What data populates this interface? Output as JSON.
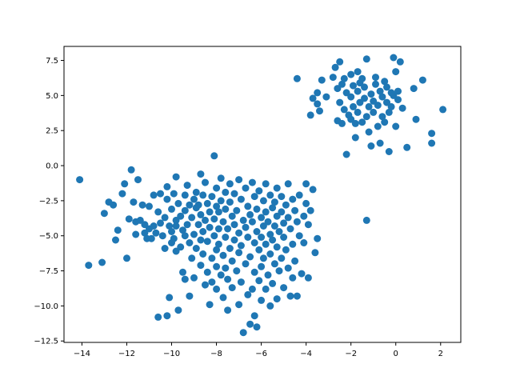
{
  "chart_data": {
    "type": "scatter",
    "title": "",
    "xlabel": "",
    "ylabel": "",
    "xlim": [
      -14.8,
      2.9
    ],
    "ylim": [
      -12.6,
      8.5
    ],
    "xticks": [
      -14,
      -12,
      -10,
      -8,
      -6,
      -4,
      -2,
      0,
      2
    ],
    "yticks": [
      -12.5,
      -10.0,
      -7.5,
      -5.0,
      -2.5,
      0.0,
      2.5,
      5.0,
      7.5
    ],
    "xtick_labels": [
      "−14",
      "−12",
      "−10",
      "−8",
      "−6",
      "−4",
      "−2",
      "0",
      "2"
    ],
    "ytick_labels": [
      "−12.5",
      "−10.0",
      "−7.5",
      "−5.0",
      "−2.5",
      "0.0",
      "2.5",
      "5.0",
      "7.5"
    ],
    "grid": false,
    "legend": "none",
    "marker_color": "#1f77b4",
    "series": [
      {
        "points": [
          [
            -14.1,
            -1.0
          ],
          [
            -13.7,
            -7.1
          ],
          [
            -13.1,
            -6.9
          ],
          [
            -13.0,
            -3.4
          ],
          [
            -12.8,
            -2.6
          ],
          [
            -12.6,
            -2.8
          ],
          [
            -12.5,
            -5.3
          ],
          [
            -12.4,
            -4.6
          ],
          [
            -12.2,
            -2.0
          ],
          [
            -12.1,
            -1.3
          ],
          [
            -12.0,
            -6.6
          ],
          [
            -11.9,
            -3.8
          ],
          [
            -11.8,
            -0.3
          ],
          [
            -11.7,
            -2.6
          ],
          [
            -11.6,
            -4.0
          ],
          [
            -11.6,
            -4.9
          ],
          [
            -11.5,
            -1.0
          ],
          [
            -11.4,
            -3.9
          ],
          [
            -11.3,
            -2.8
          ],
          [
            -11.2,
            -4.2
          ],
          [
            -11.2,
            -4.8
          ],
          [
            -11.1,
            -5.2
          ],
          [
            -11.0,
            -2.9
          ],
          [
            -11.0,
            -4.5
          ],
          [
            -10.9,
            -5.2
          ],
          [
            -10.8,
            -2.1
          ],
          [
            -10.8,
            -4.3
          ],
          [
            -10.7,
            -4.8
          ],
          [
            -10.6,
            -3.3
          ],
          [
            -10.6,
            -10.8
          ],
          [
            -10.5,
            -2.0
          ],
          [
            -10.5,
            -4.1
          ],
          [
            -10.4,
            -5.0
          ],
          [
            -10.3,
            -3.7
          ],
          [
            -10.3,
            -5.9
          ],
          [
            -10.2,
            -1.5
          ],
          [
            -10.2,
            -2.4
          ],
          [
            -10.2,
            -10.7
          ],
          [
            -10.1,
            -4.3
          ],
          [
            -10.1,
            -9.4
          ],
          [
            -10.0,
            -3.1
          ],
          [
            -10.0,
            -4.7
          ],
          [
            -10.0,
            -5.5
          ],
          [
            -9.9,
            -2.0
          ],
          [
            -9.9,
            -5.2
          ],
          [
            -9.8,
            -0.8
          ],
          [
            -9.8,
            -3.9
          ],
          [
            -9.8,
            -4.3
          ],
          [
            -9.8,
            -6.1
          ],
          [
            -9.7,
            -2.7
          ],
          [
            -9.7,
            -10.3
          ],
          [
            -9.6,
            -3.6
          ],
          [
            -9.6,
            -5.8
          ],
          [
            -9.5,
            -4.6
          ],
          [
            -9.5,
            -7.6
          ],
          [
            -9.4,
            -2.1
          ],
          [
            -9.4,
            -3.2
          ],
          [
            -9.4,
            -5.0
          ],
          [
            -9.4,
            -8.1
          ],
          [
            -9.3,
            -1.4
          ],
          [
            -9.3,
            -4.2
          ],
          [
            -9.2,
            -2.8
          ],
          [
            -9.2,
            -5.5
          ],
          [
            -9.2,
            -9.3
          ],
          [
            -9.1,
            -3.7
          ],
          [
            -9.1,
            -6.6
          ],
          [
            -9.0,
            -2.4
          ],
          [
            -9.0,
            -4.9
          ],
          [
            -9.0,
            -8.0
          ],
          [
            -8.9,
            -1.9
          ],
          [
            -8.9,
            -3.0
          ],
          [
            -8.9,
            -5.9
          ],
          [
            -8.8,
            -4.2
          ],
          [
            -8.8,
            -2.8
          ],
          [
            -8.7,
            -0.6
          ],
          [
            -8.7,
            -3.5
          ],
          [
            -8.7,
            -5.3
          ],
          [
            -8.7,
            -7.1
          ],
          [
            -8.6,
            -2.1
          ],
          [
            -8.6,
            -4.7
          ],
          [
            -8.6,
            -6.3
          ],
          [
            -8.5,
            -1.2
          ],
          [
            -8.5,
            -3.9
          ],
          [
            -8.5,
            -8.5
          ],
          [
            -8.4,
            -2.7
          ],
          [
            -8.4,
            -5.4
          ],
          [
            -8.4,
            -7.6
          ],
          [
            -8.3,
            -3.3
          ],
          [
            -8.3,
            -4.4
          ],
          [
            -8.3,
            -9.9
          ],
          [
            -8.2,
            -2.2
          ],
          [
            -8.2,
            -6.6
          ],
          [
            -8.2,
            -8.3
          ],
          [
            -8.1,
            0.7
          ],
          [
            -8.1,
            -3.8
          ],
          [
            -8.1,
            -5.0
          ],
          [
            -8.0,
            -1.6
          ],
          [
            -8.0,
            -2.9
          ],
          [
            -8.0,
            -6.0
          ],
          [
            -8.0,
            -7.2
          ],
          [
            -8.0,
            -8.8
          ],
          [
            -7.9,
            -4.5
          ],
          [
            -7.9,
            -3.3
          ],
          [
            -7.9,
            -5.6
          ],
          [
            -7.8,
            -0.9
          ],
          [
            -7.8,
            -2.5
          ],
          [
            -7.8,
            -7.8
          ],
          [
            -7.7,
            -4.0
          ],
          [
            -7.7,
            -6.4
          ],
          [
            -7.7,
            -9.4
          ],
          [
            -7.6,
            -1.9
          ],
          [
            -7.6,
            -3.1
          ],
          [
            -7.6,
            -5.1
          ],
          [
            -7.6,
            -7.3
          ],
          [
            -7.5,
            -4.5
          ],
          [
            -7.5,
            -8.1
          ],
          [
            -7.5,
            -10.3
          ],
          [
            -7.4,
            -1.3
          ],
          [
            -7.4,
            -2.6
          ],
          [
            -7.4,
            -5.9
          ],
          [
            -7.3,
            -3.6
          ],
          [
            -7.3,
            -6.8
          ],
          [
            -7.3,
            -8.7
          ],
          [
            -7.2,
            -4.2
          ],
          [
            -7.2,
            -2.0
          ],
          [
            -7.2,
            -5.3
          ],
          [
            -7.1,
            -7.5
          ],
          [
            -7.1,
            -3.2
          ],
          [
            -7.0,
            -1.0
          ],
          [
            -7.0,
            -4.8
          ],
          [
            -7.0,
            -6.2
          ],
          [
            -7.0,
            -9.9
          ],
          [
            -6.9,
            -2.4
          ],
          [
            -6.9,
            -5.7
          ],
          [
            -6.9,
            -8.3
          ],
          [
            -6.8,
            -3.9
          ],
          [
            -6.8,
            -11.9
          ],
          [
            -6.7,
            -1.6
          ],
          [
            -6.7,
            -4.4
          ],
          [
            -6.7,
            -7.0
          ],
          [
            -6.6,
            -2.9
          ],
          [
            -6.6,
            -5.1
          ],
          [
            -6.6,
            -9.2
          ],
          [
            -6.5,
            -3.5
          ],
          [
            -6.5,
            -6.5
          ],
          [
            -6.5,
            -11.3
          ],
          [
            -6.4,
            -1.2
          ],
          [
            -6.4,
            -4.0
          ],
          [
            -6.4,
            -8.8
          ],
          [
            -6.3,
            -2.2
          ],
          [
            -6.3,
            -5.5
          ],
          [
            -6.3,
            -7.6
          ],
          [
            -6.3,
            -10.7
          ],
          [
            -6.2,
            -3.1
          ],
          [
            -6.2,
            -4.7
          ],
          [
            -6.2,
            -11.5
          ],
          [
            -6.1,
            -1.8
          ],
          [
            -6.1,
            -6.0
          ],
          [
            -6.1,
            -8.2
          ],
          [
            -6.0,
            -3.7
          ],
          [
            -6.0,
            -5.1
          ],
          [
            -6.0,
            -7.2
          ],
          [
            -6.0,
            -9.6
          ],
          [
            -5.9,
            -2.5
          ],
          [
            -5.9,
            -4.3
          ],
          [
            -5.9,
            -6.6
          ],
          [
            -5.8,
            -1.3
          ],
          [
            -5.8,
            -3.3
          ],
          [
            -5.8,
            -5.6
          ],
          [
            -5.8,
            -8.8
          ],
          [
            -5.7,
            -4.0
          ],
          [
            -5.7,
            -7.8
          ],
          [
            -5.6,
            -2.1
          ],
          [
            -5.6,
            -4.9
          ],
          [
            -5.6,
            -6.3
          ],
          [
            -5.6,
            -10.0
          ],
          [
            -5.5,
            -3.0
          ],
          [
            -5.5,
            -5.3
          ],
          [
            -5.5,
            -8.4
          ],
          [
            -5.4,
            -2.6
          ],
          [
            -5.4,
            -4.3
          ],
          [
            -5.4,
            -7.0
          ],
          [
            -5.3,
            -1.6
          ],
          [
            -5.3,
            -3.6
          ],
          [
            -5.3,
            -5.8
          ],
          [
            -5.3,
            -9.5
          ],
          [
            -5.2,
            -4.7
          ],
          [
            -5.2,
            -7.5
          ],
          [
            -5.1,
            -2.2
          ],
          [
            -5.1,
            -3.3
          ],
          [
            -5.1,
            -6.6
          ],
          [
            -5.0,
            -4.1
          ],
          [
            -5.0,
            -5.1
          ],
          [
            -5.0,
            -8.7
          ],
          [
            -4.9,
            -2.8
          ],
          [
            -4.9,
            -6.0
          ],
          [
            -4.8,
            -1.3
          ],
          [
            -4.8,
            -3.7
          ],
          [
            -4.8,
            -7.3
          ],
          [
            -4.7,
            -4.5
          ],
          [
            -4.7,
            -9.3
          ],
          [
            -4.6,
            -2.4
          ],
          [
            -4.6,
            -5.6
          ],
          [
            -4.6,
            -8.0
          ],
          [
            -4.5,
            -3.2
          ],
          [
            -4.5,
            -6.8
          ],
          [
            -4.4,
            -4.0
          ],
          [
            -4.4,
            -9.3
          ],
          [
            -4.3,
            -2.1
          ],
          [
            -4.3,
            -5.0
          ],
          [
            -4.2,
            -7.7
          ],
          [
            -4.1,
            -3.6
          ],
          [
            -4.1,
            -5.5
          ],
          [
            -4.0,
            -2.7
          ],
          [
            -4.0,
            -1.3
          ],
          [
            -3.9,
            -4.2
          ],
          [
            -3.9,
            -8.0
          ],
          [
            -3.8,
            -3.2
          ],
          [
            -3.7,
            -1.7
          ],
          [
            -3.6,
            -6.2
          ],
          [
            -3.5,
            -5.2
          ],
          [
            -1.3,
            -3.9
          ],
          [
            -4.4,
            6.2
          ],
          [
            -3.8,
            3.6
          ],
          [
            -3.7,
            4.8
          ],
          [
            -3.5,
            5.2
          ],
          [
            -3.5,
            4.4
          ],
          [
            -3.4,
            3.9
          ],
          [
            -3.3,
            6.1
          ],
          [
            -3.1,
            4.9
          ],
          [
            -2.8,
            6.3
          ],
          [
            -2.7,
            7.0
          ],
          [
            -2.6,
            5.5
          ],
          [
            -2.6,
            3.2
          ],
          [
            -2.5,
            7.4
          ],
          [
            -2.5,
            4.5
          ],
          [
            -2.4,
            5.8
          ],
          [
            -2.4,
            3.0
          ],
          [
            -2.3,
            6.2
          ],
          [
            -2.3,
            4.0
          ],
          [
            -2.2,
            0.8
          ],
          [
            -2.2,
            5.2
          ],
          [
            -2.1,
            3.6
          ],
          [
            -2.0,
            6.5
          ],
          [
            -2.0,
            4.9
          ],
          [
            -2.0,
            3.3
          ],
          [
            -1.9,
            5.7
          ],
          [
            -1.9,
            4.2
          ],
          [
            -1.8,
            3.0
          ],
          [
            -1.8,
            2.0
          ],
          [
            -1.7,
            6.7
          ],
          [
            -1.7,
            5.3
          ],
          [
            -1.7,
            3.8
          ],
          [
            -1.6,
            4.5
          ],
          [
            -1.6,
            5.9
          ],
          [
            -1.5,
            3.1
          ],
          [
            -1.5,
            6.2
          ],
          [
            -1.4,
            4.8
          ],
          [
            -1.4,
            5.6
          ],
          [
            -1.3,
            7.6
          ],
          [
            -1.3,
            3.5
          ],
          [
            -1.2,
            4.2
          ],
          [
            -1.2,
            2.4
          ],
          [
            -1.1,
            5.1
          ],
          [
            -1.1,
            1.4
          ],
          [
            -1.0,
            4.6
          ],
          [
            -1.0,
            3.8
          ],
          [
            -0.9,
            5.8
          ],
          [
            -0.9,
            6.3
          ],
          [
            -0.8,
            4.3
          ],
          [
            -0.8,
            2.8
          ],
          [
            -0.7,
            5.3
          ],
          [
            -0.7,
            1.6
          ],
          [
            -0.6,
            3.5
          ],
          [
            -0.6,
            4.9
          ],
          [
            -0.5,
            6.0
          ],
          [
            -0.5,
            3.1
          ],
          [
            -0.4,
            4.5
          ],
          [
            -0.4,
            5.6
          ],
          [
            -0.3,
            3.8
          ],
          [
            -0.3,
            1.0
          ],
          [
            -0.2,
            5.2
          ],
          [
            -0.2,
            4.2
          ],
          [
            -0.1,
            7.7
          ],
          [
            -0.1,
            5.0
          ],
          [
            0.0,
            2.8
          ],
          [
            0.0,
            6.7
          ],
          [
            0.1,
            4.7
          ],
          [
            0.1,
            5.3
          ],
          [
            0.2,
            7.4
          ],
          [
            0.3,
            4.1
          ],
          [
            0.5,
            1.3
          ],
          [
            0.8,
            5.5
          ],
          [
            0.9,
            3.3
          ],
          [
            1.2,
            6.1
          ],
          [
            1.6,
            2.3
          ],
          [
            1.6,
            1.6
          ],
          [
            2.1,
            4.0
          ]
        ]
      }
    ]
  }
}
